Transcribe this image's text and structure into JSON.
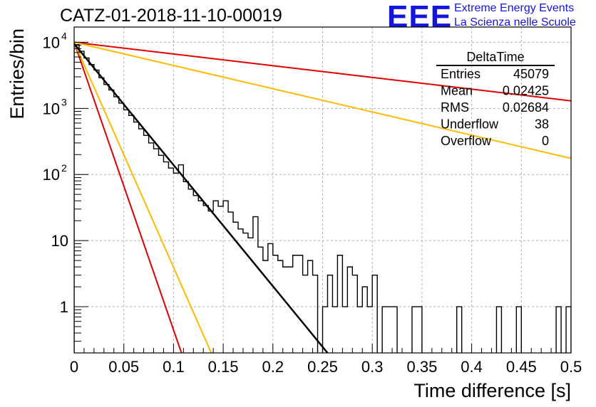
{
  "header": {
    "title": "CATZ-01-2018-11-10-00019",
    "logo_text": "EEE",
    "logo_line1": "Extreme Energy Events",
    "logo_line2": "La Scienza nelle Scuole"
  },
  "colors": {
    "histogram": "#000000",
    "fit": "#000000",
    "red_curve": "#e00000",
    "orange_curve": "#ffbb00",
    "grid": "#b0b0b0",
    "logo": "#1515e0"
  },
  "stats_box": {
    "title": "DeltaTime",
    "rows": [
      {
        "label": "Entries",
        "value": "45079"
      },
      {
        "label": "Mean",
        "value": "0.02425"
      },
      {
        "label": "RMS",
        "value": "0.02684"
      },
      {
        "label": "Underflow",
        "value": "38"
      },
      {
        "label": "Overflow",
        "value": "0"
      }
    ]
  },
  "chart_data": {
    "type": "line",
    "xlabel": "Time difference [s]",
    "ylabel": "Entries/bin",
    "xlim": [
      0,
      0.5
    ],
    "ylim": [
      0.2,
      17000
    ],
    "y_scale": "log",
    "grid": true,
    "x_ticks": [
      "0",
      "0.05",
      "0.1",
      "0.15",
      "0.2",
      "0.25",
      "0.3",
      "0.35",
      "0.4",
      "0.45",
      "0.5"
    ],
    "y_ticks": [
      {
        "value": 1,
        "label": "1",
        "sup": ""
      },
      {
        "value": 10,
        "label": "10",
        "sup": ""
      },
      {
        "value": 100,
        "label": "10",
        "sup": "2"
      },
      {
        "value": 1000,
        "label": "10",
        "sup": "3"
      },
      {
        "value": 10000,
        "label": "10",
        "sup": "4"
      }
    ],
    "histogram": {
      "bin_width": 0.005,
      "values": [
        9200,
        7300,
        5800,
        4600,
        3800,
        2900,
        2300,
        1900,
        1500,
        1200,
        950,
        780,
        620,
        490,
        390,
        300,
        245,
        195,
        155,
        125,
        105,
        140,
        78,
        60,
        48,
        40,
        34,
        28,
        40,
        33,
        40,
        27,
        19,
        15,
        13,
        11,
        23,
        8,
        5,
        9,
        6,
        5,
        4,
        4,
        6,
        6,
        3,
        5,
        3,
        0,
        1,
        3,
        1,
        6,
        1,
        4,
        3,
        1,
        2,
        1,
        3,
        0,
        1,
        1,
        1,
        0,
        0,
        0,
        1,
        1,
        0,
        0,
        0,
        0,
        0,
        0,
        0,
        1,
        0,
        0,
        0,
        0,
        0,
        0,
        0,
        1,
        0,
        0,
        0,
        1,
        0,
        0,
        0,
        0,
        0,
        0,
        0,
        1,
        0,
        1
      ]
    },
    "fit": {
      "name": "",
      "start": [
        0,
        9500
      ],
      "end": [
        0.255,
        0.2
      ]
    },
    "curves": [
      {
        "color": "red",
        "start": [
          0,
          10000
        ],
        "end": [
          0.108,
          0.2
        ]
      },
      {
        "color": "orange",
        "start": [
          0,
          10000
        ],
        "end": [
          0.138,
          0.2
        ]
      },
      {
        "color": "red",
        "start": [
          0,
          10000
        ],
        "end": [
          0.5,
          1300
        ]
      },
      {
        "color": "orange",
        "start": [
          0,
          10000
        ],
        "end": [
          0.5,
          175
        ]
      }
    ]
  }
}
